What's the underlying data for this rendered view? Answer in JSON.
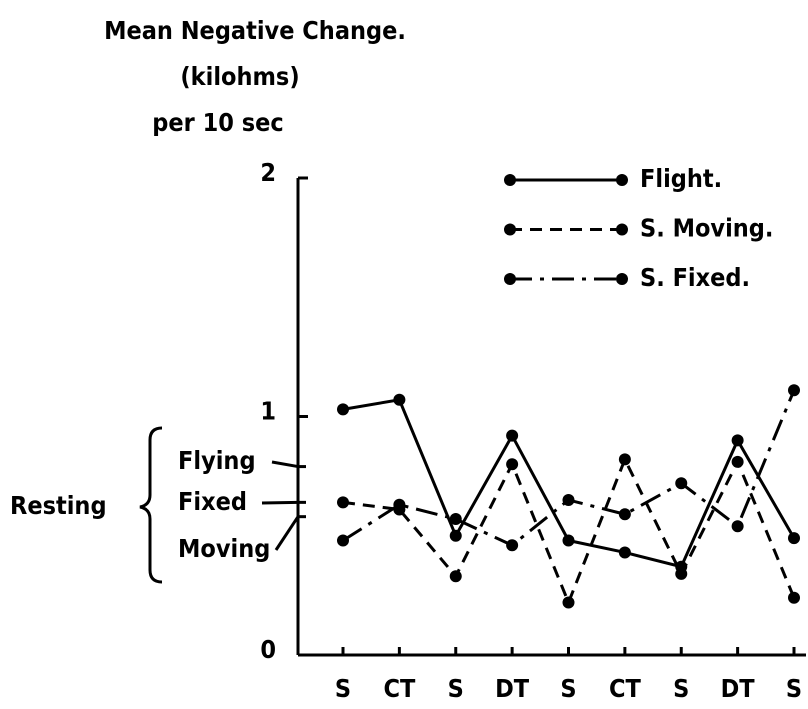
{
  "chart_data": {
    "type": "line",
    "ylabel": [
      "Mean Negative Change.",
      "(kilohms)",
      "per 10 sec"
    ],
    "categories": [
      "S",
      "CT",
      "S",
      "DT",
      "S",
      "CT",
      "S",
      "DT",
      "S"
    ],
    "series": [
      {
        "name": "Flight.",
        "color": "#000000",
        "dash": "solid",
        "values": [
          1.03,
          1.07,
          0.5,
          0.92,
          0.48,
          0.43,
          0.37,
          0.9,
          0.49
        ]
      },
      {
        "name": "S. Moving.",
        "color": "#000000",
        "dash": "dashed",
        "values": [
          0.64,
          0.61,
          0.33,
          0.8,
          0.22,
          0.82,
          0.34,
          0.81,
          0.24
        ]
      },
      {
        "name": "S. Fixed.",
        "color": "#000000",
        "dash": "dashdot",
        "values": [
          0.48,
          0.63,
          0.57,
          0.46,
          0.65,
          0.59,
          0.72,
          0.54,
          1.11
        ]
      }
    ],
    "ylim": [
      0,
      2
    ],
    "yticks": [
      0,
      1,
      2
    ],
    "resting_label": "Resting",
    "resting_levels": [
      {
        "label": "Flying",
        "value": 0.79
      },
      {
        "label": "Fixed",
        "value": 0.64
      },
      {
        "label": "Moving",
        "value": 0.58
      }
    ],
    "legend": "upper right"
  }
}
